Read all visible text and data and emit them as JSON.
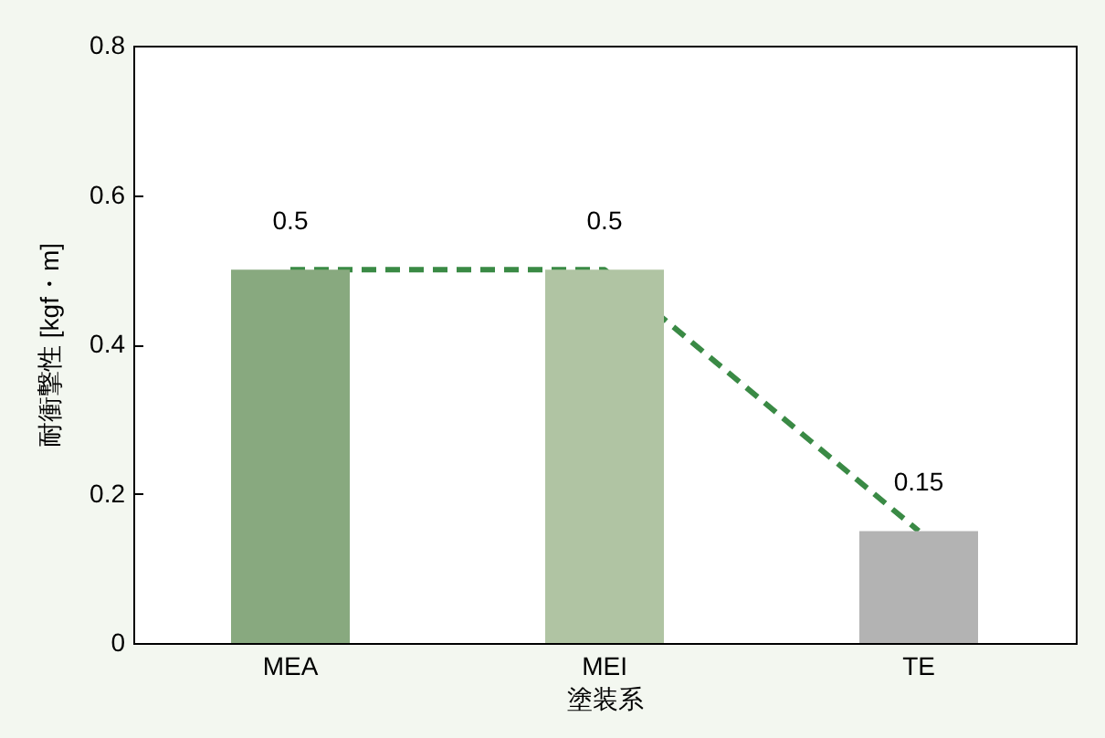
{
  "chart_data": {
    "type": "bar",
    "xlabel": "塗装系",
    "ylabel": "耐衝撃性 [kgf・m]",
    "categories": [
      "MEA",
      "MEI",
      "TE"
    ],
    "series": [
      {
        "colors": [
          "#88a97f",
          "#b0c4a3",
          "#b3b3b3"
        ],
        "values": [
          0.5,
          0.5,
          0.15
        ],
        "value_labels": [
          "0.5",
          "0.5",
          "0.15"
        ]
      },
      {
        "type": "line",
        "color": "#3a8a45",
        "values": [
          0.5,
          0.5,
          0.15
        ]
      }
    ],
    "line_style": "dashed",
    "ylim": [
      0,
      0.8
    ],
    "yticks": [
      0,
      0.2,
      0.4,
      0.6,
      0.8
    ],
    "grid": false
  }
}
